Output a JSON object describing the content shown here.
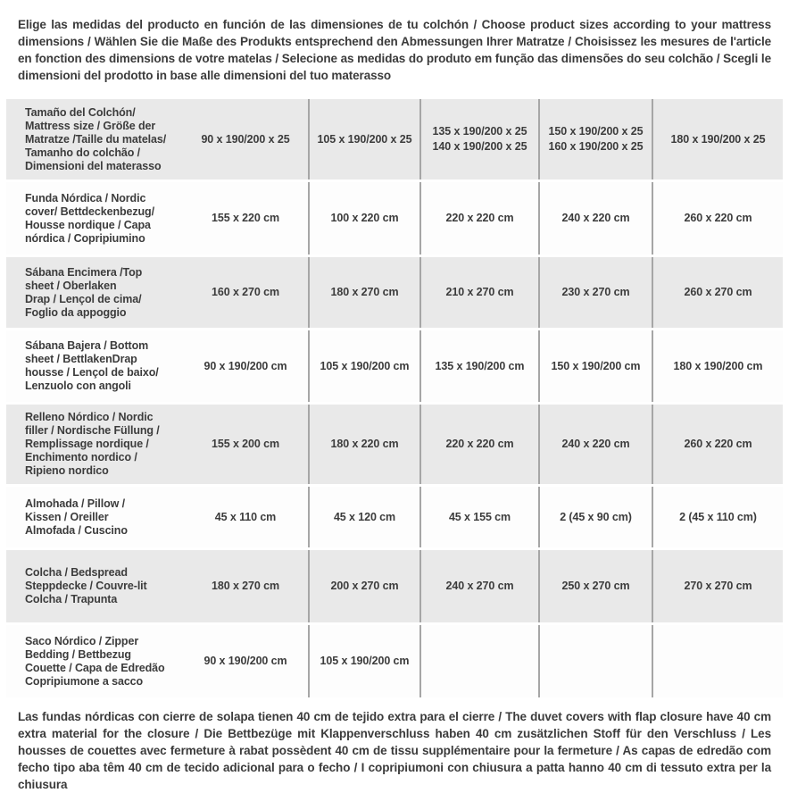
{
  "intro": {
    "text": "Elige las medidas del producto en función de las dimensiones de tu colchón / Choose product sizes according to your mattress dimensions / Wählen Sie die Maße des Produkts entsprechend den Abmessungen Ihrer Matratze / Choisissez les mesures de l'article en fonction des dimensions de votre matelas / Selecione as medidas do produto em função das dimensões do seu colchão / Scegli le dimensioni del prodotto in base alle dimensioni del tuo materasso"
  },
  "table": {
    "rows": [
      {
        "label": "Tamaño del Colchón/\nMattress size / Größe der\nMatratze /Taille du matelas/\nTamanho do colchão /\nDimensioni del materasso",
        "values": [
          "90 x 190/200 x 25",
          "105 x 190/200 x 25",
          "135 x 190/200 x 25\n140 x 190/200 x 25",
          "150 x 190/200 x 25\n160 x 190/200 x 25",
          "180 x 190/200 x 25"
        ]
      },
      {
        "label": "Funda Nórdica /  Nordic\ncover/ Bettdeckenbezug/\nHousse nordique  / Capa\nnórdica / Copripiumino",
        "values": [
          "155 x 220 cm",
          "100 x 220 cm",
          "220 x 220 cm",
          "240 x 220 cm",
          "260 x 220 cm"
        ]
      },
      {
        "label": "Sábana Encimera /Top\nsheet / Oberlaken\nDrap / Lençol de cima/\nFoglio da appoggio",
        "values": [
          "160 x 270 cm",
          "180 x 270 cm",
          "210 x 270 cm",
          "230 x 270 cm",
          "260 x 270 cm"
        ]
      },
      {
        "label": "Sábana Bajera / Bottom\nsheet / BettlakenDrap\nhousse / Lençol de baixo/\nLenzuolo con angoli",
        "values": [
          "90 x 190/200 cm",
          "105 x 190/200 cm",
          "135 x 190/200 cm",
          "150 x 190/200 cm",
          "180 x 190/200 cm"
        ]
      },
      {
        "label": "Relleno Nórdico / Nordic\nfiller / Nordische Füllung /\nRemplissage nordique /\nEnchimento nordico /\nRipieno nordico",
        "values": [
          "155 x 200 cm",
          "180 x 220 cm",
          "220 x 220 cm",
          "240 x 220 cm",
          "260 x 220 cm"
        ]
      },
      {
        "label": "Almohada  / Pillow /\nKissen / Oreiller\nAlmofada / Cuscino",
        "values": [
          "45 x 110 cm",
          "45 x 120 cm",
          "45 x 155 cm",
          "2 (45 x 90 cm)",
          "2 (45 x 110 cm)"
        ]
      },
      {
        "label": "Colcha / Bedspread\nSteppdecke / Couvre-lit\nColcha / Trapunta",
        "values": [
          "180 x 270 cm",
          "200 x 270 cm",
          "240 x 270 cm",
          "250 x 270 cm",
          "270 x 270 cm"
        ]
      },
      {
        "label": "Saco Nórdico / Zipper\nBedding / Bettbezug\nCouette  / Capa de Edredão\nCopripiumone a sacco",
        "values": [
          "90 x 190/200 cm",
          "105 x 190/200 cm",
          "",
          "",
          ""
        ]
      }
    ]
  },
  "footnote": {
    "text": "Las fundas nórdicas con cierre de solapa tienen 40 cm de tejido extra para el cierre  / The duvet covers with flap closure have 40 cm extra material for the closure / Die Bettbezüge mit Klappenverschluss haben 40 cm zusätzlichen Stoff für den Verschluss / Les housses de couettes avec fermeture à rabat possèdent 40 cm de tissu supplémentaire pour la fermeture / As capas de edredão com fecho tipo aba têm 40 cm de tecido adicional para o fecho / I copripiumoni con chiusura a patta hanno 40 cm di tessuto extra per la chiusura"
  },
  "colors": {
    "row_alt_background": "#e9e9e9",
    "column_separator": "#a6a6a6",
    "text": "#3c3c3c"
  }
}
